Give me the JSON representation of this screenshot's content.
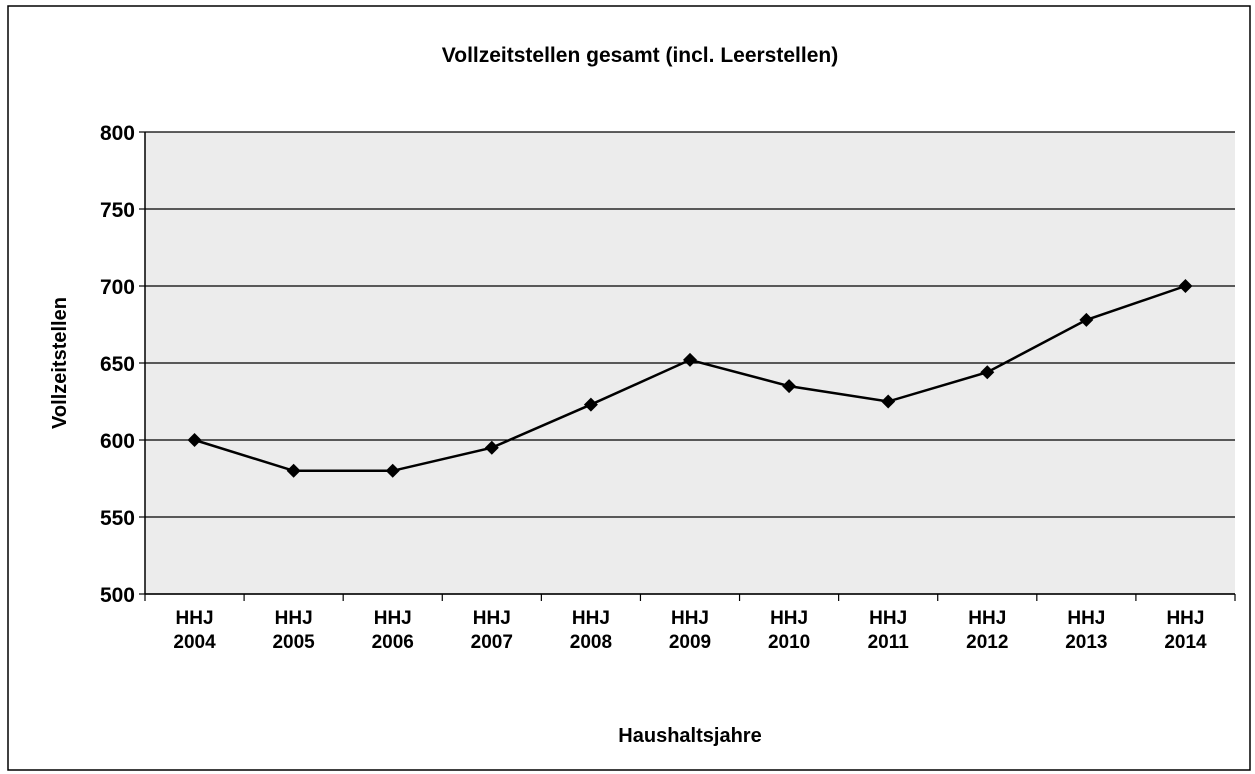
{
  "chart_data": {
    "type": "line",
    "title": "Vollzeitstellen gesamt (incl. Leerstellen)",
    "x_label": "Haushaltsjahre",
    "y_label": "Vollzeitstellen",
    "categories": [
      "HHJ 2004",
      "HHJ 2005",
      "HHJ 2006",
      "HHJ 2007",
      "HHJ 2008",
      "HHJ 2009",
      "HHJ 2010",
      "HHJ 2011",
      "HHJ 2012",
      "HHJ 2013",
      "HHJ 2014"
    ],
    "series": [
      {
        "name": "Vollzeitstellen",
        "color": "#000000",
        "values": [
          600,
          580,
          580,
          595,
          623,
          652,
          635,
          625,
          644,
          678,
          700
        ]
      }
    ],
    "ylim": [
      500,
      800
    ],
    "yticks": [
      500,
      550,
      600,
      650,
      700,
      750,
      800
    ],
    "grid": true
  }
}
